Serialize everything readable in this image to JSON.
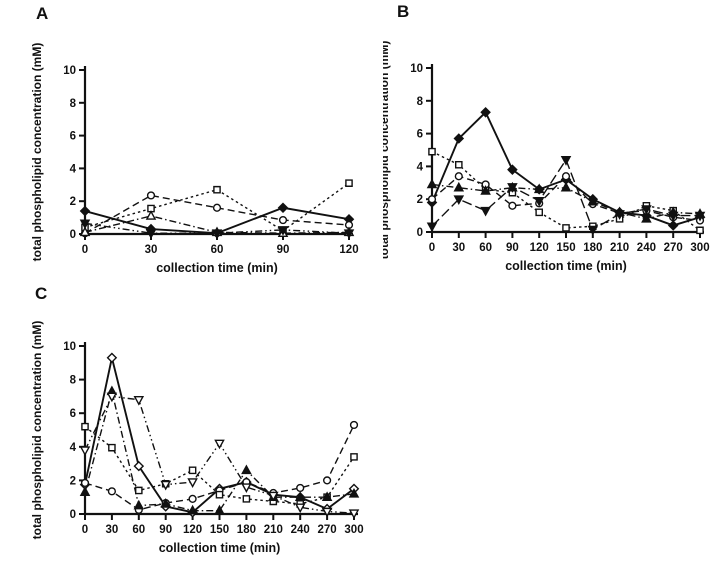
{
  "page": {
    "background": "#ffffff",
    "ink": "#111111"
  },
  "chart_data": [
    {
      "panel": "A",
      "type": "line",
      "title": "",
      "xlabel": "collection time (min)",
      "ylabel": "total phospholipid concentration (mM)",
      "x": [
        0,
        30,
        60,
        90,
        120
      ],
      "xlim": [
        0,
        120
      ],
      "ylim": [
        0,
        10
      ],
      "xticks": [
        0,
        30,
        60,
        90,
        120
      ],
      "yticks": [
        0,
        2,
        4,
        6,
        8,
        10
      ],
      "grid": false,
      "legend": "none",
      "series": [
        {
          "name": "filled-diamond-solid",
          "marker": "diamond",
          "fill": "filled",
          "line": "solid",
          "values": [
            1.4,
            0.3,
            0.05,
            1.6,
            0.9
          ]
        },
        {
          "name": "open-circle-dashed",
          "marker": "circle",
          "fill": "open",
          "line": "dashed",
          "values": [
            0.05,
            2.35,
            1.6,
            0.85,
            0.55
          ]
        },
        {
          "name": "open-square-dotted",
          "marker": "square",
          "fill": "open",
          "line": "dotted",
          "values": [
            0.4,
            1.55,
            2.7,
            0.2,
            3.1
          ]
        },
        {
          "name": "open-triangle-dashdot",
          "marker": "triangle-up",
          "fill": "open",
          "line": "dashdot",
          "values": [
            0.1,
            1.1,
            0.1,
            0.05,
            0.1
          ]
        },
        {
          "name": "filled-invtriangle-dashdotdot",
          "marker": "triangle-down",
          "fill": "filled",
          "line": "dashdotdot",
          "values": [
            0.65,
            0.05,
            0.05,
            0.25,
            0.05
          ]
        }
      ]
    },
    {
      "panel": "B",
      "type": "line",
      "title": "",
      "xlabel": "collection time (min)",
      "ylabel": "total phospholipid concentration (mM)",
      "x": [
        0,
        30,
        60,
        90,
        120,
        150,
        180,
        210,
        240,
        270,
        300
      ],
      "xlim": [
        0,
        300
      ],
      "ylim": [
        0,
        10
      ],
      "xticks": [
        0,
        30,
        60,
        90,
        120,
        150,
        180,
        210,
        240,
        270,
        300
      ],
      "yticks": [
        0,
        2,
        4,
        6,
        8,
        10
      ],
      "grid": false,
      "legend": "none",
      "series": [
        {
          "name": "filled-diamond-solid",
          "marker": "diamond",
          "fill": "filled",
          "line": "solid",
          "values": [
            1.8,
            5.7,
            7.3,
            3.8,
            2.6,
            3.2,
            2.0,
            1.2,
            1.0,
            0.4,
            0.9
          ]
        },
        {
          "name": "open-square-dotted",
          "marker": "square",
          "fill": "open",
          "line": "dotted",
          "values": [
            4.9,
            4.1,
            2.6,
            2.4,
            1.2,
            0.25,
            0.35,
            0.8,
            1.6,
            1.3,
            0.1
          ]
        },
        {
          "name": "open-circle-dashed",
          "marker": "circle",
          "fill": "open",
          "line": "dashed",
          "values": [
            2.0,
            3.4,
            2.9,
            1.6,
            1.75,
            3.4,
            1.7,
            1.15,
            1.3,
            0.9,
            0.7
          ]
        },
        {
          "name": "filled-triangle-dashdot",
          "marker": "triangle-up",
          "fill": "filled",
          "line": "dashdot",
          "values": [
            2.9,
            2.7,
            2.5,
            2.7,
            2.6,
            2.7,
            1.85,
            1.2,
            0.8,
            1.2,
            1.1
          ]
        },
        {
          "name": "filled-invtriangle-longdash",
          "marker": "triangle-down",
          "fill": "filled",
          "line": "longdash",
          "values": [
            0.35,
            2.0,
            1.3,
            2.75,
            1.9,
            4.4,
            0.15,
            1.1,
            1.4,
            1.0,
            1.0
          ]
        }
      ]
    },
    {
      "panel": "C",
      "type": "line",
      "title": "",
      "xlabel": "collection time (min)",
      "ylabel": "total phospholipid concentration (mM)",
      "x": [
        0,
        30,
        60,
        90,
        120,
        150,
        180,
        210,
        240,
        270,
        300
      ],
      "xlim": [
        0,
        300
      ],
      "ylim": [
        0,
        10
      ],
      "xticks": [
        0,
        30,
        60,
        90,
        120,
        150,
        180,
        210,
        240,
        270,
        300
      ],
      "yticks": [
        0,
        2,
        4,
        6,
        8,
        10
      ],
      "grid": false,
      "legend": "none",
      "series": [
        {
          "name": "open-diamond-solid",
          "marker": "diamond",
          "fill": "open",
          "line": "solid",
          "values": [
            1.75,
            9.3,
            2.85,
            0.45,
            0.1,
            1.5,
            1.9,
            1.15,
            1.0,
            0.3,
            1.5
          ]
        },
        {
          "name": "open-circle-dashed",
          "marker": "circle",
          "fill": "open",
          "line": "dashed",
          "values": [
            1.85,
            1.35,
            0.25,
            0.65,
            0.9,
            1.4,
            1.9,
            1.25,
            1.55,
            2.0,
            5.3
          ]
        },
        {
          "name": "open-square-dotted",
          "marker": "square",
          "fill": "open",
          "line": "dotted",
          "values": [
            5.2,
            3.95,
            1.4,
            1.8,
            2.6,
            1.15,
            0.9,
            0.75,
            0.6,
            1.0,
            3.4
          ]
        },
        {
          "name": "filled-triangle-dashdot",
          "marker": "triangle-up",
          "fill": "filled",
          "line": "dashdot",
          "values": [
            1.3,
            7.3,
            0.5,
            0.6,
            0.2,
            0.2,
            2.6,
            1.0,
            1.0,
            1.0,
            1.2
          ]
        },
        {
          "name": "open-invtriangle-dashdotdot",
          "marker": "triangle-down",
          "fill": "open",
          "line": "dashdotdot",
          "values": [
            3.8,
            7.0,
            6.8,
            1.75,
            1.9,
            4.2,
            1.6,
            1.1,
            0.4,
            0.15,
            0.05
          ]
        }
      ]
    }
  ]
}
